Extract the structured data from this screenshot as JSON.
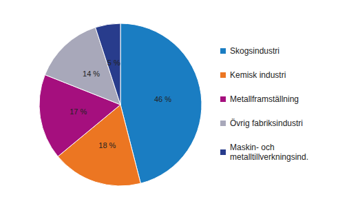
{
  "chart_data": {
    "type": "pie",
    "categories": [
      "Skogsindustri",
      "Kemisk industri",
      "Metallframställning",
      "Övrig fabriksindustri",
      "Maskin- och metalltillverkningsind."
    ],
    "values": [
      46,
      18,
      17,
      14,
      5
    ],
    "value_labels": [
      "46 %",
      "18 %",
      "17 %",
      "14 %",
      "5 %"
    ],
    "colors": [
      "#1a7dc2",
      "#ec7622",
      "#a50f7e",
      "#a8a8ba",
      "#283c8c"
    ],
    "data_labels": true,
    "legend": "right"
  }
}
